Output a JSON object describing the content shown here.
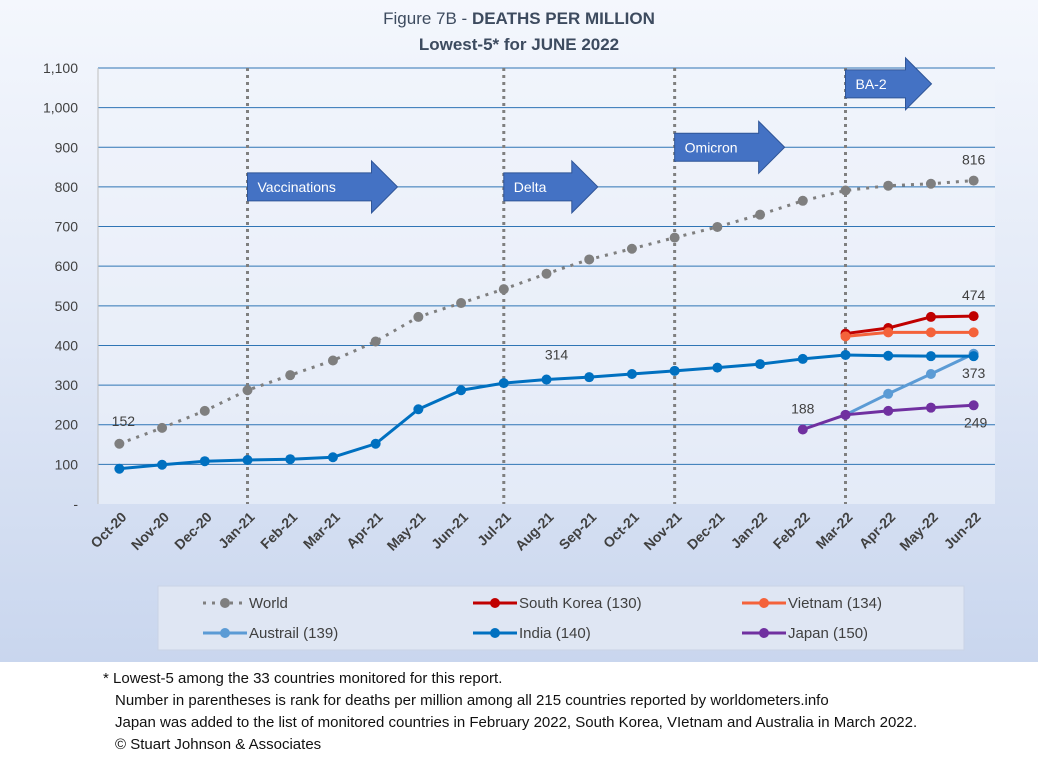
{
  "title": {
    "prefix": "Figure 7B - ",
    "main": "DEATHS PER MILLION",
    "subtitle": "Lowest-5* for JUNE 2022"
  },
  "chart_data": {
    "type": "line",
    "categories": [
      "Oct-20",
      "Nov-20",
      "Dec-20",
      "Jan-21",
      "Feb-21",
      "Mar-21",
      "Apr-21",
      "May-21",
      "Jun-21",
      "Jul-21",
      "Aug-21",
      "Sep-21",
      "Oct-21",
      "Nov-21",
      "Dec-21",
      "Jan-22",
      "Feb-22",
      "Mar-22",
      "Apr-22",
      "May-22",
      "Jun-22"
    ],
    "ylim": [
      0,
      1100
    ],
    "yticks": [
      0,
      100,
      200,
      300,
      400,
      500,
      600,
      700,
      800,
      900,
      1000,
      1100
    ],
    "ytick_labels": [
      "-",
      "100",
      "200",
      "300",
      "400",
      "500",
      "600",
      "700",
      "800",
      "900",
      "1,000",
      "1,100"
    ],
    "grid": true,
    "legend_position": "bottom",
    "series": [
      {
        "name": "World",
        "color": "#7f7f7f",
        "style": "dotted",
        "values": [
          152,
          192,
          235,
          287,
          325,
          362,
          410,
          472,
          507,
          542,
          581,
          617,
          644,
          672,
          699,
          730,
          765,
          791,
          803,
          808,
          816
        ]
      },
      {
        "name": "South Korea (130)",
        "color": "#c00000",
        "style": "solid",
        "values": [
          null,
          null,
          null,
          null,
          null,
          null,
          null,
          null,
          null,
          null,
          null,
          null,
          null,
          null,
          null,
          null,
          null,
          430,
          444,
          472,
          474
        ]
      },
      {
        "name": "Vietnam (134)",
        "color": "#f4623a",
        "style": "solid",
        "values": [
          null,
          null,
          null,
          null,
          null,
          null,
          null,
          null,
          null,
          null,
          null,
          null,
          null,
          null,
          null,
          null,
          null,
          423,
          433,
          433,
          433
        ]
      },
      {
        "name": "Austrail (139)",
        "color": "#5b9bd5",
        "style": "solid",
        "values": [
          null,
          null,
          null,
          null,
          null,
          null,
          null,
          null,
          null,
          null,
          null,
          null,
          null,
          null,
          null,
          null,
          null,
          225,
          278,
          328,
          379
        ]
      },
      {
        "name": "India (140)",
        "color": "#0070c0",
        "style": "solid",
        "values": [
          89,
          99,
          108,
          111,
          113,
          118,
          152,
          239,
          287,
          305,
          314,
          320,
          328,
          336,
          344,
          353,
          366,
          376,
          374,
          373,
          373
        ]
      },
      {
        "name": "Japan (150)",
        "color": "#7030a0",
        "style": "solid",
        "values": [
          null,
          null,
          null,
          null,
          null,
          null,
          null,
          null,
          null,
          null,
          null,
          null,
          null,
          null,
          null,
          null,
          188,
          225,
          235,
          243,
          249
        ]
      }
    ],
    "data_labels": [
      {
        "series": "World",
        "index": 0,
        "text": "152"
      },
      {
        "series": "World",
        "index": 20,
        "text": "816"
      },
      {
        "series": "South Korea (130)",
        "index": 20,
        "text": "474"
      },
      {
        "series": "India (140)",
        "index": 10,
        "text": "314"
      },
      {
        "series": "India (140)",
        "index": 20,
        "text": "373"
      },
      {
        "series": "Japan (150)",
        "index": 16,
        "text": "188"
      },
      {
        "series": "Japan (150)",
        "index": 20,
        "text": "249"
      }
    ],
    "annotations": [
      {
        "text": "Vaccinations",
        "index": 3,
        "value": 800
      },
      {
        "text": "Delta",
        "index": 9,
        "value": 800
      },
      {
        "text": "Omicron",
        "index": 13,
        "value": 900
      },
      {
        "text": "BA-2",
        "index": 17,
        "value": 1060
      }
    ],
    "vlines": [
      3,
      9,
      13,
      17
    ],
    "arrow_color": "#4472c4"
  },
  "footnotes": [
    "* Lowest-5 among the 33 countries monitored for this report.",
    "Number in parentheses is rank for deaths per million among all 215 countries reported by worldometers.info",
    "Japan was added to the list of monitored countries in February 2022, South Korea, VIetnam and Australia in March 2022.",
    "© Stuart Johnson & Associates"
  ]
}
